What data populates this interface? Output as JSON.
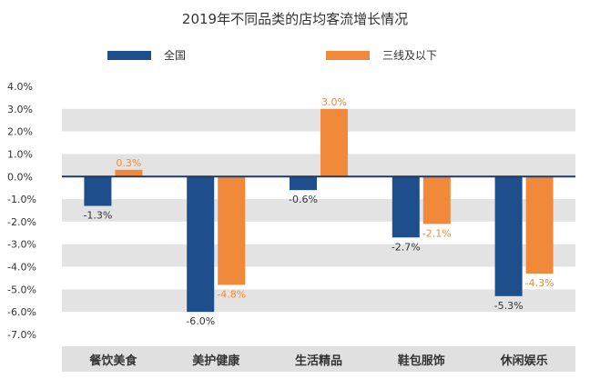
{
  "chart_data": {
    "type": "bar",
    "title": "2019年不同品类的店均客流增长情况",
    "categories": [
      "餐饮美食",
      "美护健康",
      "生活精品",
      "鞋包服饰",
      "休闲娱乐"
    ],
    "series": [
      {
        "name": "全国",
        "color": "#1f4e8c",
        "values": [
          -1.3,
          -6.0,
          -0.6,
          -2.7,
          -5.3
        ],
        "labels": [
          "-1.3%",
          "-6.0%",
          "-0.6%",
          "-2.7%",
          "-5.3%"
        ]
      },
      {
        "name": "三线及以下",
        "color": "#f08a3a",
        "values": [
          0.3,
          -4.8,
          3.0,
          -2.1,
          -4.3
        ],
        "labels": [
          "0.3%",
          "-4.8%",
          "3.0%",
          "-2.1%",
          "-4.3%"
        ]
      }
    ],
    "y_ticks": [
      "4.0%",
      "3.0%",
      "2.0%",
      "1.0%",
      "0.0%",
      "-1.0%",
      "-2.0%",
      "-3.0%",
      "-4.0%",
      "-5.0%",
      "-6.0%",
      "-7.0%"
    ],
    "ylim": [
      -7,
      4
    ],
    "legend_position": "top",
    "band_colors": [
      "#ffffff",
      "#e3e3e3"
    ],
    "zero_line_color": "#1f3b63",
    "category_bar_color": "#e0e0e0"
  }
}
